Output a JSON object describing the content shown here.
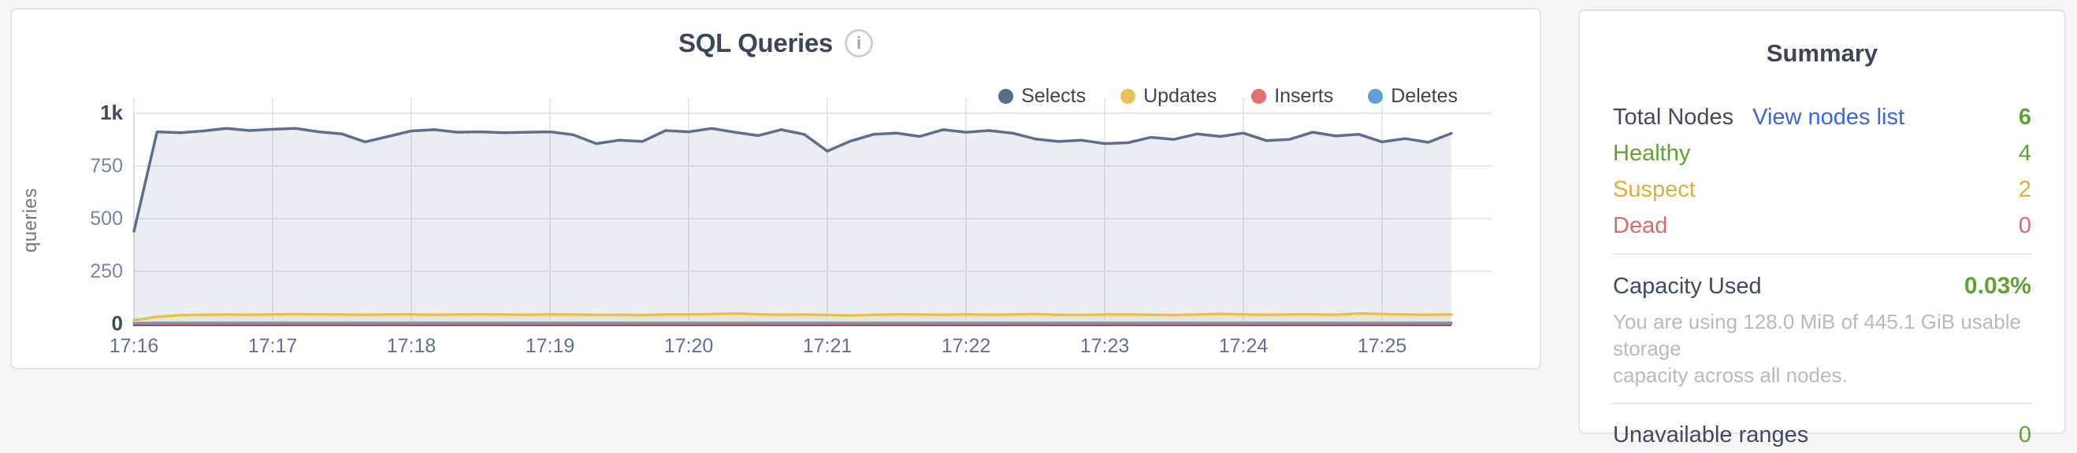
{
  "page": {
    "background": "#f6f6f7"
  },
  "colors": {
    "title_dark": "#3c4659",
    "green": "#61a233",
    "gold": "#dfae3c",
    "red": "#d96b69",
    "link_blue": "#3a67dd",
    "muted_gray": "#b7bac2",
    "axis_label": "#67798f"
  },
  "chart_card": {
    "title": "SQL Queries",
    "info_icon_glyph": "i",
    "y_axis_title": "queries",
    "legend": [
      {
        "label": "Selects",
        "color": "#5a6b89"
      },
      {
        "label": "Updates",
        "color": "#e9c158"
      },
      {
        "label": "Inserts",
        "color": "#e2716e"
      },
      {
        "label": "Deletes",
        "color": "#5f9fd5"
      }
    ]
  },
  "chart_data": {
    "type": "area",
    "title": "SQL Queries",
    "ylabel": "queries",
    "ylim": [
      0,
      1000
    ],
    "grid": true,
    "legend_position": "top-right",
    "y_ticks": [
      {
        "label": "1k",
        "value": 1000,
        "emphasis": true
      },
      {
        "label": "750",
        "value": 750,
        "emphasis": false
      },
      {
        "label": "500",
        "value": 500,
        "emphasis": false
      },
      {
        "label": "250",
        "value": 250,
        "emphasis": false
      },
      {
        "label": "0",
        "value": 0,
        "emphasis": true
      }
    ],
    "x_tick_labels": [
      "17:16",
      "17:17",
      "17:18",
      "17:19",
      "17:20",
      "17:21",
      "17:22",
      "17:23",
      "17:24",
      "17:25"
    ],
    "x_step_minutes": 0.166667,
    "series": [
      {
        "name": "Selects",
        "color": "#5f6e8e",
        "fill": "rgba(110,130,165,0.14)",
        "values": [
          440,
          912,
          908,
          916,
          928,
          918,
          924,
          928,
          912,
          902,
          864,
          890,
          916,
          922,
          910,
          912,
          908,
          910,
          912,
          898,
          856,
          872,
          866,
          918,
          912,
          928,
          910,
          894,
          922,
          900,
          820,
          868,
          900,
          906,
          890,
          922,
          910,
          918,
          906,
          878,
          866,
          872,
          856,
          860,
          886,
          876,
          902,
          890,
          906,
          870,
          876,
          910,
          892,
          900,
          864,
          880,
          862,
          905
        ]
      },
      {
        "name": "Updates",
        "color": "#e8c24f",
        "fill": "rgba(232,194,79,0.18)",
        "values": [
          18,
          34,
          42,
          44,
          45,
          44,
          46,
          47,
          46,
          45,
          44,
          45,
          46,
          44,
          45,
          46,
          45,
          44,
          46,
          45,
          43,
          44,
          42,
          46,
          45,
          47,
          50,
          46,
          44,
          45,
          43,
          40,
          44,
          46,
          45,
          44,
          46,
          44,
          45,
          47,
          44,
          43,
          45,
          46,
          44,
          42,
          45,
          48,
          46,
          44,
          45,
          46,
          44,
          50,
          47,
          45,
          44,
          46
        ]
      },
      {
        "name": "Inserts",
        "color": "#e2716e",
        "fill": "none",
        "values": [
          2,
          2,
          2,
          2,
          2,
          2,
          2,
          2,
          2,
          2,
          2,
          2,
          2,
          2,
          2,
          2,
          2,
          2,
          2,
          2,
          2,
          2,
          2,
          2,
          2,
          2,
          2,
          2,
          2,
          2,
          2,
          2,
          2,
          2,
          2,
          2,
          2,
          2,
          2,
          2,
          2,
          2,
          2,
          2,
          2,
          2,
          2,
          2,
          2,
          2,
          2,
          2,
          2,
          2,
          2,
          2,
          2,
          2
        ]
      },
      {
        "name": "Deletes",
        "color": "#5f9fd5",
        "fill": "none",
        "values": [
          5,
          6,
          6,
          6,
          6,
          6,
          6,
          6,
          6,
          6,
          6,
          6,
          6,
          6,
          6,
          6,
          6,
          6,
          6,
          6,
          6,
          6,
          6,
          6,
          6,
          6,
          6,
          6,
          6,
          6,
          6,
          6,
          6,
          6,
          6,
          6,
          6,
          6,
          6,
          6,
          6,
          6,
          6,
          6,
          6,
          6,
          6,
          6,
          6,
          6,
          6,
          6,
          6,
          6,
          6,
          6,
          6,
          6
        ]
      }
    ]
  },
  "summary": {
    "title": "Summary",
    "rows": [
      {
        "label": "Total Nodes",
        "label_color": "#3f4b5f",
        "link": "View nodes list",
        "value": "6",
        "value_color": "#61a233",
        "value_bold": true
      },
      {
        "label": "Healthy",
        "label_color": "#61a233",
        "link": "",
        "value": "4",
        "value_color": "#61a233",
        "value_bold": false
      },
      {
        "label": "Suspect",
        "label_color": "#dfae3c",
        "link": "",
        "value": "2",
        "value_color": "#dfae3c",
        "value_bold": false
      },
      {
        "label": "Dead",
        "label_color": "#d96b69",
        "link": "",
        "value": "0",
        "value_color": "#d96b69",
        "value_bold": false
      }
    ],
    "capacity": {
      "label": "Capacity Used",
      "value": "0.03%",
      "value_color": "#61a233",
      "description_lines": [
        "You are using 128.0 MiB of 445.1 GiB usable storage",
        "capacity across all nodes."
      ]
    },
    "partial_row": {
      "label": "Unavailable ranges",
      "label_color": "#3f4b5f",
      "value": "0",
      "value_color": "#61a233"
    }
  }
}
